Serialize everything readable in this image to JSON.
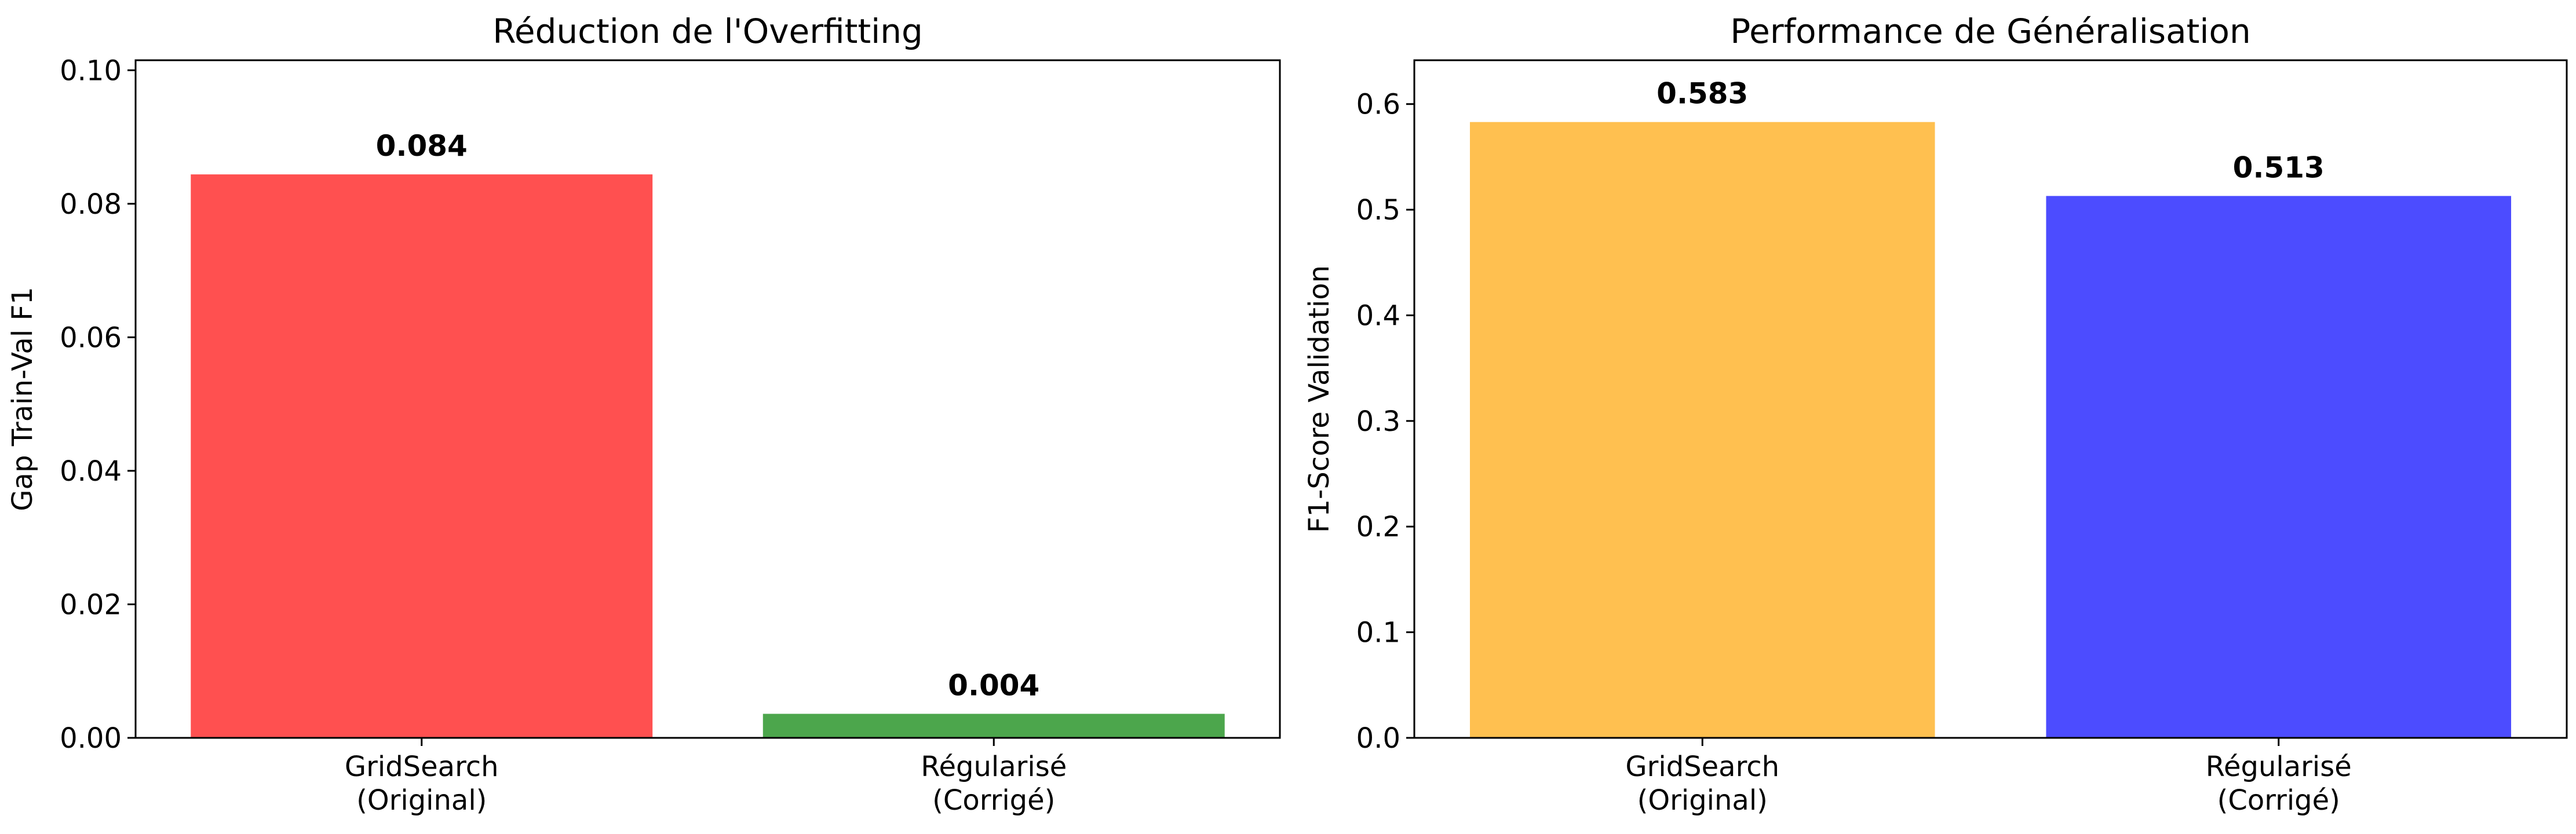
{
  "chart_data": [
    {
      "type": "bar",
      "title": "Réduction de l'Overfitting",
      "xlabel": "",
      "ylabel": "Gap Train-Val F1",
      "categories": [
        [
          "GridSearch",
          "(Original)"
        ],
        [
          "Régularisé",
          "(Corrigé)"
        ]
      ],
      "values": [
        0.0844,
        0.0036
      ],
      "value_labels": [
        "0.084",
        "0.004"
      ],
      "colors": [
        "#ff5050",
        "#4ca64c"
      ],
      "ylim": [
        0,
        0.1015
      ],
      "yticks": [
        "0.00",
        "0.02",
        "0.04",
        "0.06",
        "0.08",
        "0.10"
      ],
      "grid": false
    },
    {
      "type": "bar",
      "title": "Performance de Généralisation",
      "xlabel": "",
      "ylabel": "F1-Score Validation",
      "categories": [
        [
          "GridSearch",
          "(Original)"
        ],
        [
          "Régularisé",
          "(Corrigé)"
        ]
      ],
      "values": [
        0.583,
        0.513
      ],
      "value_labels": [
        "0.583",
        "0.513"
      ],
      "colors": [
        "#ffc050",
        "#4c4cff"
      ],
      "ylim": [
        0,
        0.6415
      ],
      "yticks": [
        "0.0",
        "0.1",
        "0.2",
        "0.3",
        "0.4",
        "0.5",
        "0.6"
      ],
      "grid": false
    }
  ]
}
